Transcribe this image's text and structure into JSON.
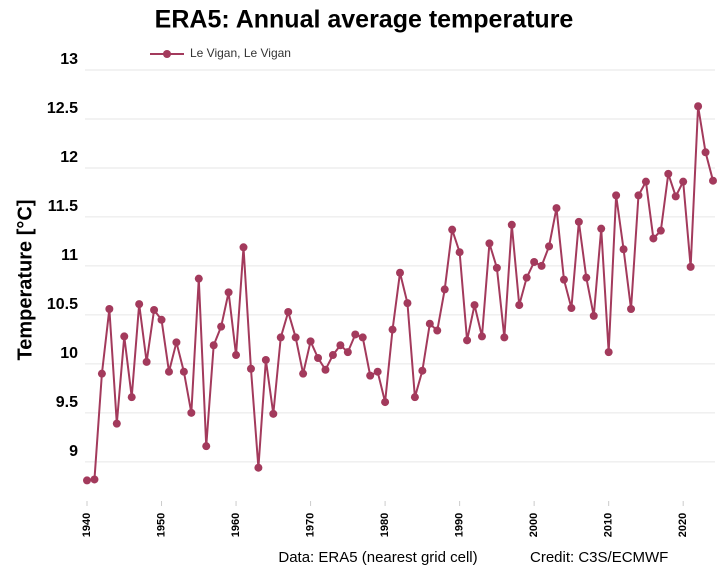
{
  "chart_data": {
    "type": "line",
    "title": "ERA5: Annual average temperature",
    "y_label": "Temperature [°C]",
    "source": "Data: ERA5 (nearest grid cell)",
    "credit": "Credit: C3S/ECMWF",
    "x": [
      1940,
      1941,
      1942,
      1943,
      1944,
      1945,
      1946,
      1947,
      1948,
      1949,
      1950,
      1951,
      1952,
      1953,
      1954,
      1955,
      1956,
      1957,
      1958,
      1959,
      1960,
      1961,
      1962,
      1963,
      1964,
      1965,
      1966,
      1967,
      1968,
      1969,
      1970,
      1971,
      1972,
      1973,
      1974,
      1975,
      1976,
      1977,
      1978,
      1979,
      1980,
      1981,
      1982,
      1983,
      1984,
      1985,
      1986,
      1987,
      1988,
      1989,
      1990,
      1991,
      1992,
      1993,
      1994,
      1995,
      1996,
      1997,
      1998,
      1999,
      2000,
      2001,
      2002,
      2003,
      2004,
      2005,
      2006,
      2007,
      2008,
      2009,
      2010,
      2011,
      2012,
      2013,
      2014,
      2015,
      2016,
      2017,
      2018,
      2019,
      2020,
      2021,
      2022,
      2023,
      2024
    ],
    "series": [
      {
        "name": "Le Vigan, Le Vigan",
        "color": "#a33a5c",
        "values": [
          8.81,
          8.82,
          9.9,
          10.56,
          9.39,
          10.28,
          9.66,
          10.61,
          10.02,
          10.55,
          10.45,
          9.92,
          10.22,
          9.92,
          9.5,
          10.87,
          9.16,
          10.19,
          10.38,
          10.73,
          10.09,
          11.19,
          9.95,
          8.94,
          10.04,
          9.49,
          10.27,
          10.53,
          10.27,
          9.9,
          10.23,
          10.06,
          9.94,
          10.09,
          10.19,
          10.12,
          10.3,
          10.27,
          9.88,
          9.92,
          9.61,
          10.35,
          10.93,
          10.62,
          9.66,
          9.93,
          10.41,
          10.34,
          10.76,
          11.37,
          11.14,
          10.24,
          10.6,
          10.28,
          11.23,
          10.98,
          10.27,
          11.42,
          10.6,
          10.88,
          11.04,
          11.0,
          11.2,
          11.59,
          10.86,
          10.57,
          11.45,
          10.88,
          10.49,
          11.38,
          10.12,
          11.72,
          11.17,
          10.56,
          11.72,
          11.86,
          11.28,
          11.36,
          11.94,
          11.71,
          11.86,
          10.99,
          12.63,
          12.16,
          11.87
        ]
      }
    ],
    "xlim": [
      1940,
      2024
    ],
    "xticks": [
      1940,
      1950,
      1960,
      1970,
      1980,
      1990,
      2000,
      2010,
      2020
    ],
    "ylim": [
      8.6,
      13
    ],
    "yticks": [
      9,
      9.5,
      10,
      10.5,
      11,
      11.5,
      12,
      12.5,
      13
    ],
    "grid": true
  }
}
